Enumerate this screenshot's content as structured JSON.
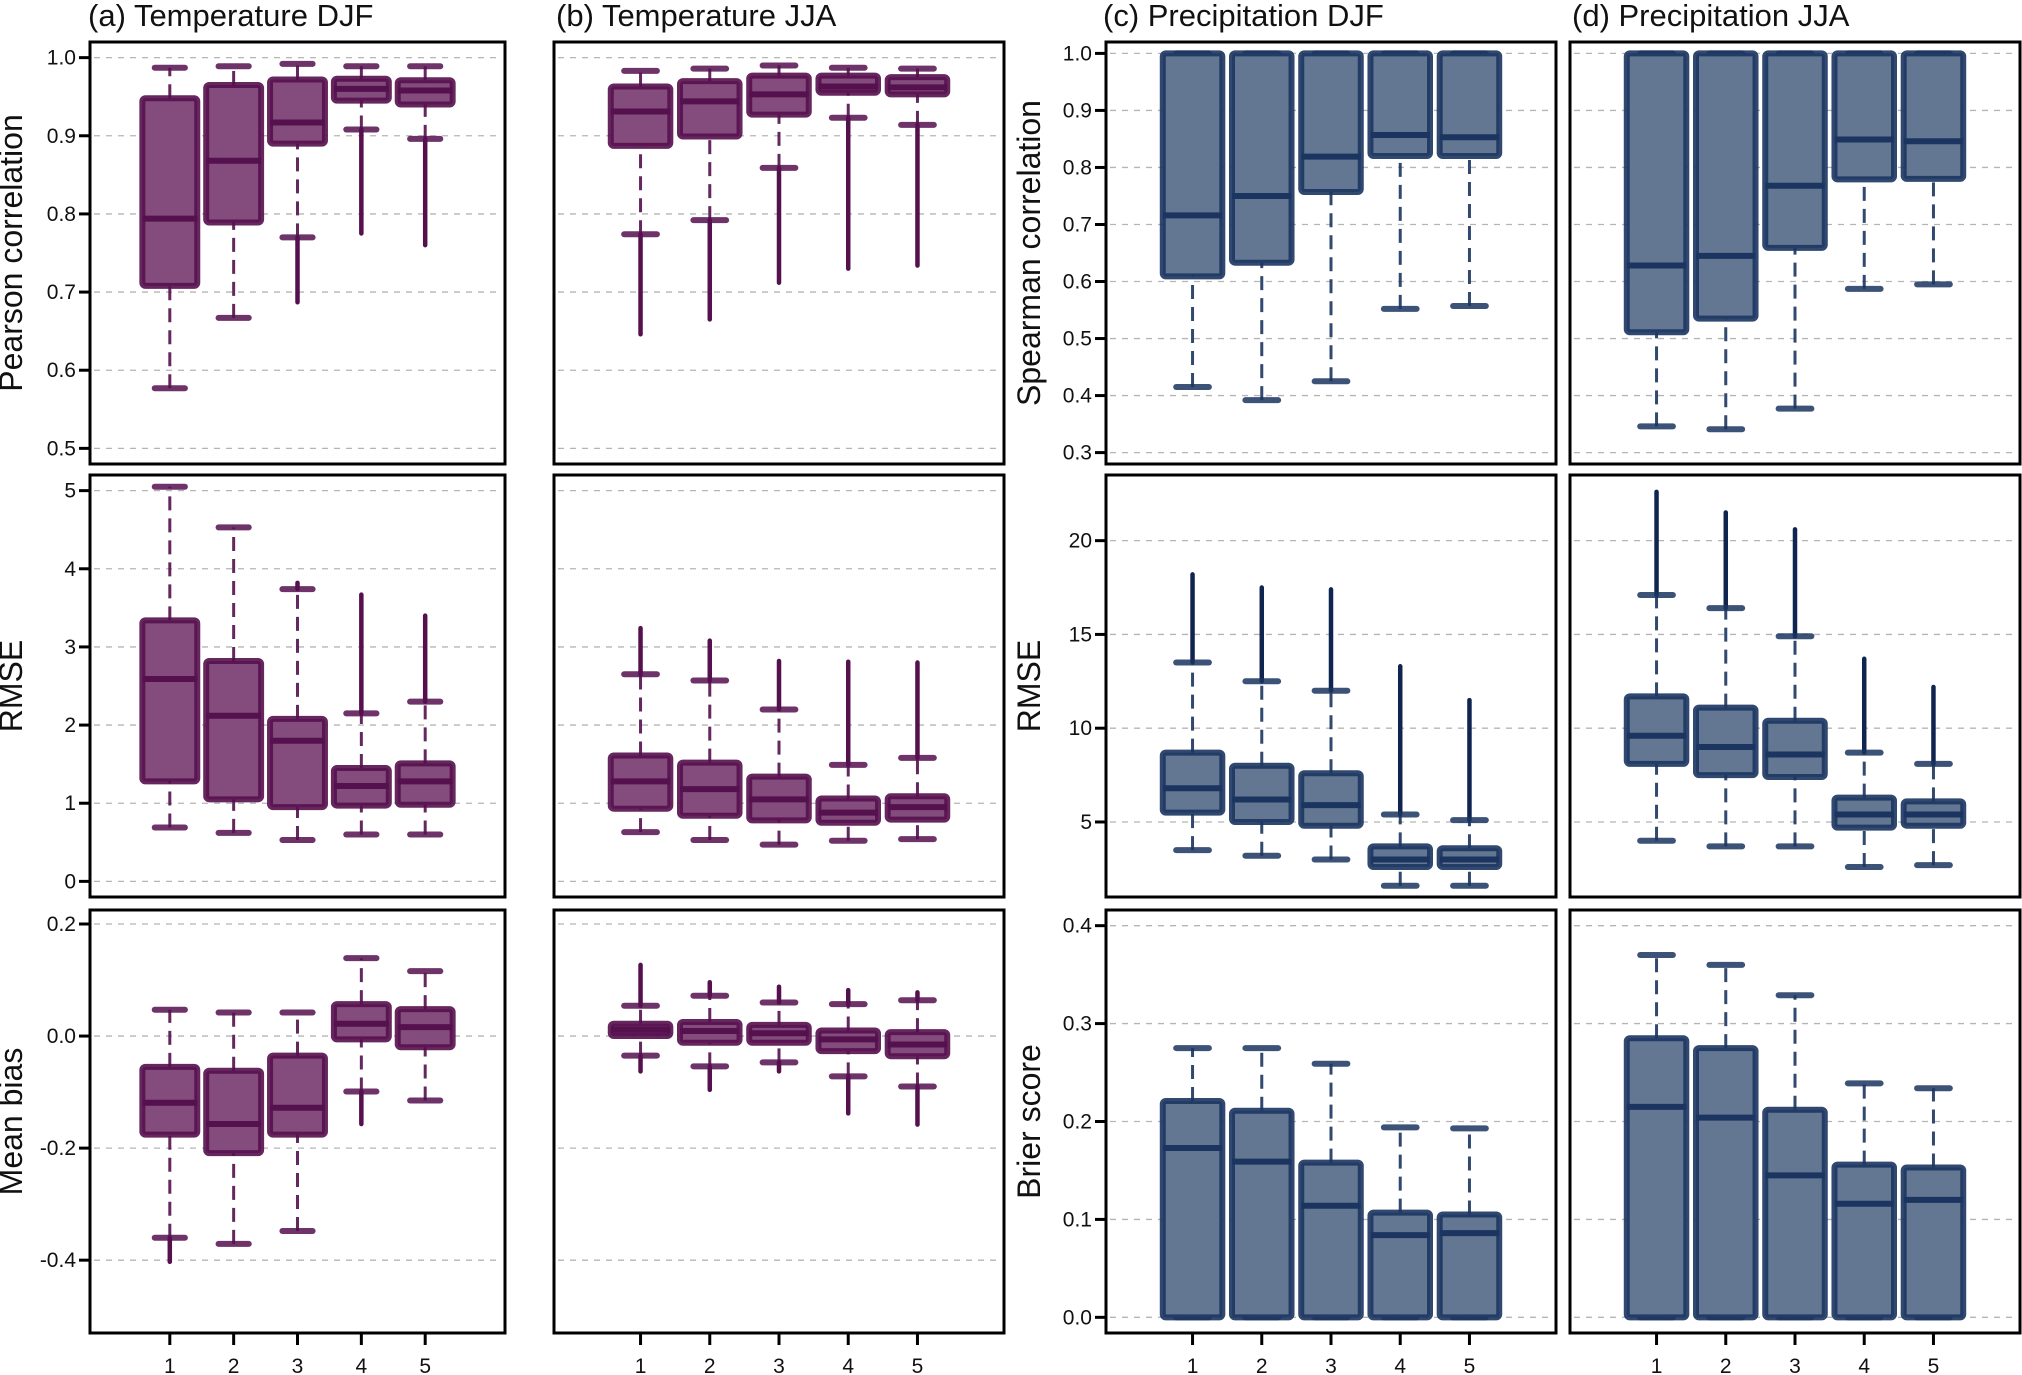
{
  "figure": {
    "colors": {
      "temperature_fill": "#834c7c",
      "temperature_edge": "#55104e",
      "precipitation_fill": "#637792",
      "precipitation_edge": "#1b3560",
      "outlier_temperature": "#55104e",
      "outlier_precipitation": "#0f2550"
    },
    "column_titles": [
      "(a) Temperature DJF",
      "(b) Temperature JJA",
      "(c) Precipitation DJF",
      "(d) Precipitation JJA"
    ],
    "x_tick_labels": [
      "1",
      "2",
      "3",
      "4",
      "5"
    ]
  },
  "chart_data": [
    {
      "type": "box",
      "panel": "a",
      "row": 1,
      "variable": "Temperature",
      "season": "DJF",
      "title": "(a) Temperature DJF",
      "ylabel": "Pearson correlation",
      "ylim": [
        0.48,
        1.02
      ],
      "yticks": [
        0.5,
        0.6,
        0.7,
        0.8,
        0.9,
        1.0
      ],
      "ytick_labels": [
        "0.5",
        "0.6",
        "0.7",
        "0.8",
        "0.9",
        "1.0"
      ],
      "categories": [
        "1",
        "2",
        "3",
        "4",
        "5"
      ],
      "boxes": [
        {
          "whisker_low": 0.577,
          "q1": 0.708,
          "median": 0.794,
          "q3": 0.948,
          "whisker_high": 0.987,
          "outliers_low": null,
          "outliers_high": null
        },
        {
          "whisker_low": 0.667,
          "q1": 0.789,
          "median": 0.868,
          "q3": 0.965,
          "whisker_high": 0.989,
          "outliers_low": null,
          "outliers_high": null
        },
        {
          "whisker_low": 0.77,
          "q1": 0.89,
          "median": 0.917,
          "q3": 0.972,
          "whisker_high": 0.992,
          "outliers_low": 0.687,
          "outliers_high": null
        },
        {
          "whisker_low": 0.908,
          "q1": 0.945,
          "median": 0.96,
          "q3": 0.973,
          "whisker_high": 0.989,
          "outliers_low": 0.775,
          "outliers_high": null
        },
        {
          "whisker_low": 0.896,
          "q1": 0.94,
          "median": 0.958,
          "q3": 0.971,
          "whisker_high": 0.989,
          "outliers_low": 0.76,
          "outliers_high": null
        }
      ]
    },
    {
      "type": "box",
      "panel": "b",
      "row": 1,
      "variable": "Temperature",
      "season": "JJA",
      "title": "(b) Temperature JJA",
      "ylabel": "",
      "ylim": [
        0.48,
        1.02
      ],
      "yticks": [
        0.5,
        0.6,
        0.7,
        0.8,
        0.9,
        1.0
      ],
      "ytick_labels": null,
      "categories": [
        "1",
        "2",
        "3",
        "4",
        "5"
      ],
      "boxes": [
        {
          "whisker_low": 0.774,
          "q1": 0.887,
          "median": 0.931,
          "q3": 0.963,
          "whisker_high": 0.983,
          "outliers_low": 0.646,
          "outliers_high": null
        },
        {
          "whisker_low": 0.792,
          "q1": 0.899,
          "median": 0.944,
          "q3": 0.97,
          "whisker_high": 0.986,
          "outliers_low": 0.665,
          "outliers_high": null
        },
        {
          "whisker_low": 0.859,
          "q1": 0.927,
          "median": 0.953,
          "q3": 0.977,
          "whisker_high": 0.99,
          "outliers_low": 0.712,
          "outliers_high": null
        },
        {
          "whisker_low": 0.923,
          "q1": 0.955,
          "median": 0.963,
          "q3": 0.977,
          "whisker_high": 0.987,
          "outliers_low": 0.73,
          "outliers_high": null
        },
        {
          "whisker_low": 0.914,
          "q1": 0.953,
          "median": 0.962,
          "q3": 0.975,
          "whisker_high": 0.986,
          "outliers_low": 0.734,
          "outliers_high": null
        }
      ]
    },
    {
      "type": "box",
      "panel": "c",
      "row": 1,
      "variable": "Precipitation",
      "season": "DJF",
      "title": "(c) Precipitation DJF",
      "ylabel": "Spearman correlation",
      "ylim": [
        0.28,
        1.02
      ],
      "yticks": [
        0.3,
        0.4,
        0.5,
        0.6,
        0.7,
        0.8,
        0.9,
        1.0
      ],
      "ytick_labels": [
        "0.3",
        "0.4",
        "0.5",
        "0.6",
        "0.7",
        "0.8",
        "0.9",
        "1.0"
      ],
      "categories": [
        "1",
        "2",
        "3",
        "4",
        "5"
      ],
      "boxes": [
        {
          "whisker_low": 0.415,
          "q1": 0.609,
          "median": 0.716,
          "q3": 1.0,
          "whisker_high": 1.0,
          "outliers_low": null,
          "outliers_high": null
        },
        {
          "whisker_low": 0.392,
          "q1": 0.633,
          "median": 0.75,
          "q3": 1.0,
          "whisker_high": 1.0,
          "outliers_low": null,
          "outliers_high": null
        },
        {
          "whisker_low": 0.425,
          "q1": 0.757,
          "median": 0.819,
          "q3": 1.0,
          "whisker_high": 1.0,
          "outliers_low": null,
          "outliers_high": null
        },
        {
          "whisker_low": 0.552,
          "q1": 0.82,
          "median": 0.857,
          "q3": 1.0,
          "whisker_high": 1.0,
          "outliers_low": null,
          "outliers_high": null
        },
        {
          "whisker_low": 0.557,
          "q1": 0.82,
          "median": 0.853,
          "q3": 1.0,
          "whisker_high": 1.0,
          "outliers_low": null,
          "outliers_high": null
        }
      ]
    },
    {
      "type": "box",
      "panel": "d",
      "row": 1,
      "variable": "Precipitation",
      "season": "JJA",
      "title": "(d) Precipitation JJA",
      "ylabel": "",
      "ylim": [
        0.28,
        1.02
      ],
      "yticks": [
        0.3,
        0.4,
        0.5,
        0.6,
        0.7,
        0.8,
        0.9,
        1.0
      ],
      "ytick_labels": null,
      "categories": [
        "1",
        "2",
        "3",
        "4",
        "5"
      ],
      "boxes": [
        {
          "whisker_low": 0.346,
          "q1": 0.511,
          "median": 0.628,
          "q3": 1.0,
          "whisker_high": 1.0,
          "outliers_low": null,
          "outliers_high": null
        },
        {
          "whisker_low": 0.341,
          "q1": 0.535,
          "median": 0.645,
          "q3": 1.0,
          "whisker_high": 1.0,
          "outliers_low": null,
          "outliers_high": null
        },
        {
          "whisker_low": 0.377,
          "q1": 0.659,
          "median": 0.768,
          "q3": 1.0,
          "whisker_high": 1.0,
          "outliers_low": null,
          "outliers_high": null
        },
        {
          "whisker_low": 0.587,
          "q1": 0.779,
          "median": 0.849,
          "q3": 1.0,
          "whisker_high": 1.0,
          "outliers_low": null,
          "outliers_high": null
        },
        {
          "whisker_low": 0.595,
          "q1": 0.78,
          "median": 0.846,
          "q3": 1.0,
          "whisker_high": 1.0,
          "outliers_low": null,
          "outliers_high": null
        }
      ]
    },
    {
      "type": "box",
      "panel": "a",
      "row": 2,
      "variable": "Temperature",
      "season": "DJF",
      "ylabel": "RMSE",
      "ylim": [
        -0.2,
        5.2
      ],
      "yticks": [
        0,
        1,
        2,
        3,
        4,
        5
      ],
      "ytick_labels": [
        "0",
        "1",
        "2",
        "3",
        "4",
        "5"
      ],
      "categories": [
        "1",
        "2",
        "3",
        "4",
        "5"
      ],
      "boxes": [
        {
          "whisker_low": 0.69,
          "q1": 1.28,
          "median": 2.59,
          "q3": 3.34,
          "whisker_high": 5.05,
          "outliers_low": null,
          "outliers_high": null
        },
        {
          "whisker_low": 0.62,
          "q1": 1.05,
          "median": 2.12,
          "q3": 2.82,
          "whisker_high": 4.53,
          "outliers_low": null,
          "outliers_high": null
        },
        {
          "whisker_low": 0.53,
          "q1": 0.95,
          "median": 1.8,
          "q3": 2.08,
          "whisker_high": 3.74,
          "outliers_low": null,
          "outliers_high": 3.82
        },
        {
          "whisker_low": 0.6,
          "q1": 0.97,
          "median": 1.22,
          "q3": 1.45,
          "whisker_high": 2.15,
          "outliers_low": null,
          "outliers_high": 3.67
        },
        {
          "whisker_low": 0.6,
          "q1": 0.98,
          "median": 1.28,
          "q3": 1.51,
          "whisker_high": 2.3,
          "outliers_low": null,
          "outliers_high": 3.4
        }
      ]
    },
    {
      "type": "box",
      "panel": "b",
      "row": 2,
      "variable": "Temperature",
      "season": "JJA",
      "ylabel": "",
      "ylim": [
        -0.2,
        5.2
      ],
      "yticks": [
        0,
        1,
        2,
        3,
        4,
        5
      ],
      "ytick_labels": null,
      "categories": [
        "1",
        "2",
        "3",
        "4",
        "5"
      ],
      "boxes": [
        {
          "whisker_low": 0.63,
          "q1": 0.93,
          "median": 1.28,
          "q3": 1.61,
          "whisker_high": 2.65,
          "outliers_low": null,
          "outliers_high": 3.24
        },
        {
          "whisker_low": 0.53,
          "q1": 0.84,
          "median": 1.18,
          "q3": 1.52,
          "whisker_high": 2.57,
          "outliers_low": null,
          "outliers_high": 3.08
        },
        {
          "whisker_low": 0.47,
          "q1": 0.78,
          "median": 1.05,
          "q3": 1.34,
          "whisker_high": 2.2,
          "outliers_low": null,
          "outliers_high": 2.82
        },
        {
          "whisker_low": 0.52,
          "q1": 0.75,
          "median": 0.88,
          "q3": 1.06,
          "whisker_high": 1.49,
          "outliers_low": null,
          "outliers_high": 2.81
        },
        {
          "whisker_low": 0.54,
          "q1": 0.79,
          "median": 0.95,
          "q3": 1.09,
          "whisker_high": 1.58,
          "outliers_low": null,
          "outliers_high": 2.8
        }
      ]
    },
    {
      "type": "box",
      "panel": "c",
      "row": 2,
      "variable": "Precipitation",
      "season": "DJF",
      "ylabel": "RMSE",
      "ylim": [
        1.0,
        23.5
      ],
      "yticks": [
        5,
        10,
        15,
        20
      ],
      "ytick_labels": [
        "5",
        "10",
        "15",
        "20"
      ],
      "categories": [
        "1",
        "2",
        "3",
        "4",
        "5"
      ],
      "boxes": [
        {
          "whisker_low": 3.5,
          "q1": 5.5,
          "median": 6.8,
          "q3": 8.7,
          "whisker_high": 13.5,
          "outliers_low": null,
          "outliers_high": 18.2
        },
        {
          "whisker_low": 3.2,
          "q1": 5.0,
          "median": 6.2,
          "q3": 8.0,
          "whisker_high": 12.5,
          "outliers_low": null,
          "outliers_high": 17.5
        },
        {
          "whisker_low": 3.0,
          "q1": 4.8,
          "median": 5.9,
          "q3": 7.6,
          "whisker_high": 12.0,
          "outliers_low": null,
          "outliers_high": 17.4
        },
        {
          "whisker_low": 1.6,
          "q1": 2.6,
          "median": 3.0,
          "q3": 3.7,
          "whisker_high": 5.4,
          "outliers_low": null,
          "outliers_high": 13.3
        },
        {
          "whisker_low": 1.6,
          "q1": 2.6,
          "median": 3.0,
          "q3": 3.6,
          "whisker_high": 5.1,
          "outliers_low": null,
          "outliers_high": 11.5
        }
      ]
    },
    {
      "type": "box",
      "panel": "d",
      "row": 2,
      "variable": "Precipitation",
      "season": "JJA",
      "ylabel": "",
      "ylim": [
        1.0,
        23.5
      ],
      "yticks": [
        5,
        10,
        15,
        20
      ],
      "ytick_labels": null,
      "categories": [
        "1",
        "2",
        "3",
        "4",
        "5"
      ],
      "boxes": [
        {
          "whisker_low": 4.0,
          "q1": 8.1,
          "median": 9.6,
          "q3": 11.7,
          "whisker_high": 17.1,
          "outliers_low": null,
          "outliers_high": 22.6
        },
        {
          "whisker_low": 3.7,
          "q1": 7.5,
          "median": 9.0,
          "q3": 11.1,
          "whisker_high": 16.4,
          "outliers_low": null,
          "outliers_high": 21.5
        },
        {
          "whisker_low": 3.7,
          "q1": 7.4,
          "median": 8.6,
          "q3": 10.4,
          "whisker_high": 14.9,
          "outliers_low": null,
          "outliers_high": 20.6
        },
        {
          "whisker_low": 2.6,
          "q1": 4.7,
          "median": 5.4,
          "q3": 6.3,
          "whisker_high": 8.7,
          "outliers_low": null,
          "outliers_high": 13.7
        },
        {
          "whisker_low": 2.7,
          "q1": 4.8,
          "median": 5.4,
          "q3": 6.1,
          "whisker_high": 8.1,
          "outliers_low": null,
          "outliers_high": 12.2
        }
      ]
    },
    {
      "type": "box",
      "panel": "a",
      "row": 3,
      "variable": "Temperature",
      "season": "DJF",
      "ylabel": "Mean bias",
      "ylim": [
        -0.53,
        0.225
      ],
      "yticks": [
        -0.4,
        -0.2,
        0.0,
        0.2
      ],
      "ytick_labels": [
        "-0.4",
        "-0.2",
        "0.0",
        "0.2"
      ],
      "categories": [
        "1",
        "2",
        "3",
        "4",
        "5"
      ],
      "boxes": [
        {
          "whisker_low": -0.36,
          "q1": -0.176,
          "median": -0.119,
          "q3": -0.055,
          "whisker_high": 0.047,
          "outliers_low": -0.403,
          "outliers_high": null
        },
        {
          "whisker_low": -0.371,
          "q1": -0.209,
          "median": -0.157,
          "q3": -0.062,
          "whisker_high": 0.042,
          "outliers_low": null,
          "outliers_high": null
        },
        {
          "whisker_low": -0.348,
          "q1": -0.176,
          "median": -0.128,
          "q3": -0.035,
          "whisker_high": 0.042,
          "outliers_low": null,
          "outliers_high": null
        },
        {
          "whisker_low": -0.099,
          "q1": -0.006,
          "median": 0.022,
          "q3": 0.057,
          "whisker_high": 0.139,
          "outliers_low": -0.157,
          "outliers_high": null
        },
        {
          "whisker_low": -0.115,
          "q1": -0.02,
          "median": 0.016,
          "q3": 0.048,
          "whisker_high": 0.116,
          "outliers_low": null,
          "outliers_high": null
        }
      ]
    },
    {
      "type": "box",
      "panel": "b",
      "row": 3,
      "variable": "Temperature",
      "season": "JJA",
      "ylabel": "",
      "ylim": [
        -0.53,
        0.225
      ],
      "yticks": [
        -0.4,
        -0.2,
        0.0,
        0.2
      ],
      "ytick_labels": null,
      "categories": [
        "1",
        "2",
        "3",
        "4",
        "5"
      ],
      "boxes": [
        {
          "whisker_low": -0.035,
          "q1": 0.0,
          "median": 0.011,
          "q3": 0.022,
          "whisker_high": 0.054,
          "outliers_low": -0.063,
          "outliers_high": 0.127
        },
        {
          "whisker_low": -0.054,
          "q1": -0.012,
          "median": 0.009,
          "q3": 0.025,
          "whisker_high": 0.072,
          "outliers_low": -0.096,
          "outliers_high": 0.096
        },
        {
          "whisker_low": -0.047,
          "q1": -0.012,
          "median": 0.005,
          "q3": 0.02,
          "whisker_high": 0.06,
          "outliers_low": -0.063,
          "outliers_high": 0.088
        },
        {
          "whisker_low": -0.072,
          "q1": -0.027,
          "median": -0.006,
          "q3": 0.01,
          "whisker_high": 0.057,
          "outliers_low": -0.138,
          "outliers_high": 0.082
        },
        {
          "whisker_low": -0.09,
          "q1": -0.036,
          "median": -0.015,
          "q3": 0.007,
          "whisker_high": 0.064,
          "outliers_low": -0.158,
          "outliers_high": 0.078
        }
      ]
    },
    {
      "type": "box",
      "panel": "c",
      "row": 3,
      "variable": "Precipitation",
      "season": "DJF",
      "ylabel": "Brier score",
      "ylim": [
        -0.016,
        0.416
      ],
      "yticks": [
        0.0,
        0.1,
        0.2,
        0.3,
        0.4
      ],
      "ytick_labels": [
        "0.0",
        "0.1",
        "0.2",
        "0.3",
        "0.4"
      ],
      "categories": [
        "1",
        "2",
        "3",
        "4",
        "5"
      ],
      "boxes": [
        {
          "whisker_low": 0.0,
          "q1": 0.0,
          "median": 0.173,
          "q3": 0.221,
          "whisker_high": 0.275,
          "outliers_low": null,
          "outliers_high": null
        },
        {
          "whisker_low": 0.0,
          "q1": 0.0,
          "median": 0.159,
          "q3": 0.211,
          "whisker_high": 0.275,
          "outliers_low": null,
          "outliers_high": null
        },
        {
          "whisker_low": 0.0,
          "q1": 0.0,
          "median": 0.114,
          "q3": 0.158,
          "whisker_high": 0.259,
          "outliers_low": null,
          "outliers_high": null
        },
        {
          "whisker_low": 0.0,
          "q1": 0.0,
          "median": 0.084,
          "q3": 0.107,
          "whisker_high": 0.194,
          "outliers_low": null,
          "outliers_high": null
        },
        {
          "whisker_low": 0.0,
          "q1": 0.0,
          "median": 0.086,
          "q3": 0.105,
          "whisker_high": 0.193,
          "outliers_low": null,
          "outliers_high": null
        }
      ]
    },
    {
      "type": "box",
      "panel": "d",
      "row": 3,
      "variable": "Precipitation",
      "season": "JJA",
      "ylabel": "",
      "ylim": [
        -0.016,
        0.416
      ],
      "yticks": [
        0.0,
        0.1,
        0.2,
        0.3,
        0.4
      ],
      "ytick_labels": null,
      "categories": [
        "1",
        "2",
        "3",
        "4",
        "5"
      ],
      "boxes": [
        {
          "whisker_low": 0.0,
          "q1": 0.0,
          "median": 0.215,
          "q3": 0.285,
          "whisker_high": 0.37,
          "outliers_low": null,
          "outliers_high": null
        },
        {
          "whisker_low": 0.0,
          "q1": 0.0,
          "median": 0.204,
          "q3": 0.275,
          "whisker_high": 0.36,
          "outliers_low": null,
          "outliers_high": null
        },
        {
          "whisker_low": 0.0,
          "q1": 0.0,
          "median": 0.145,
          "q3": 0.212,
          "whisker_high": 0.329,
          "outliers_low": null,
          "outliers_high": null
        },
        {
          "whisker_low": 0.0,
          "q1": 0.0,
          "median": 0.116,
          "q3": 0.156,
          "whisker_high": 0.239,
          "outliers_low": null,
          "outliers_high": null
        },
        {
          "whisker_low": 0.0,
          "q1": 0.0,
          "median": 0.12,
          "q3": 0.153,
          "whisker_high": 0.234,
          "outliers_low": null,
          "outliers_high": null
        }
      ]
    }
  ]
}
